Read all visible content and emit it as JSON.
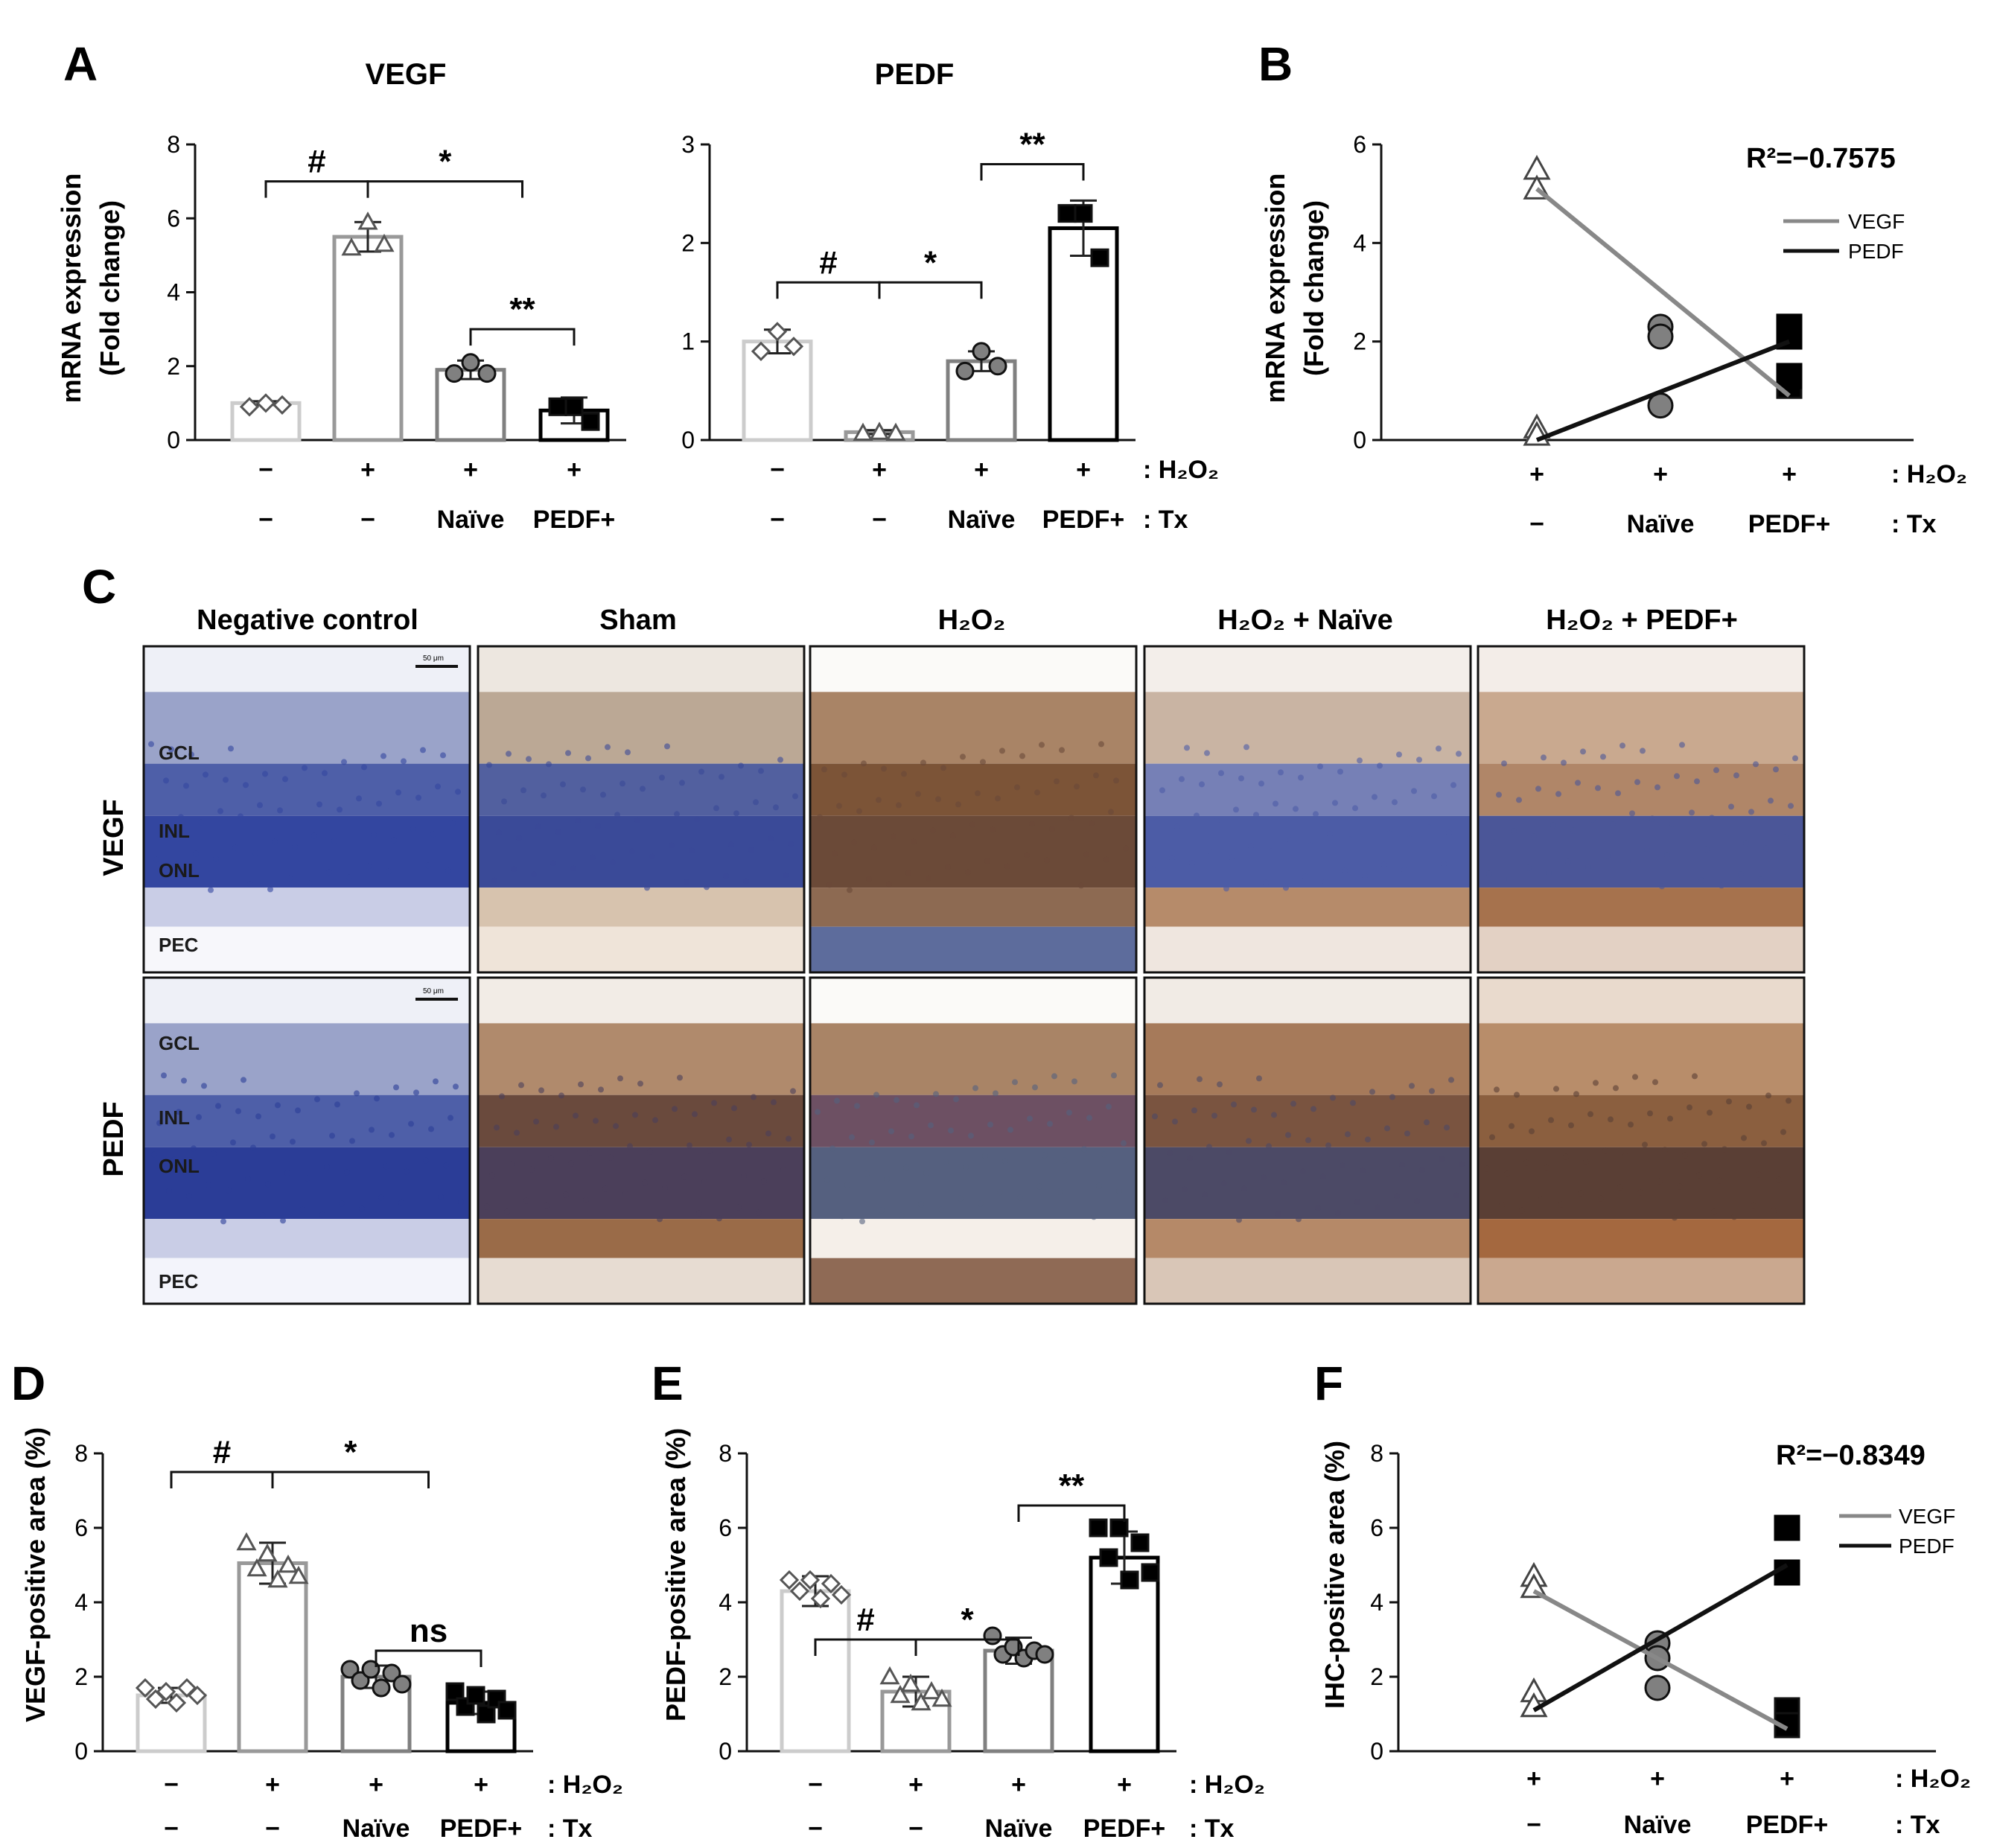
{
  "panel_letters": [
    "A",
    "B",
    "C",
    "D",
    "E",
    "F"
  ],
  "panel_A": {
    "vegf_title": "VEGF",
    "pedf_title": "PEDF",
    "ylabel_line1": "mRNA expression",
    "ylabel_line2": "(Fold change)"
  },
  "panel_B": {
    "ylabel_line1": "mRNA expression",
    "ylabel_line2": "(Fold change)",
    "r2": "R²=−0.7575",
    "legend": [
      "VEGF",
      "PEDF"
    ]
  },
  "panel_C": {
    "columns": [
      "Negative control",
      "Sham",
      "H₂O₂",
      "H₂O₂ + Naïve",
      "H₂O₂ + PEDF+"
    ],
    "rows": [
      "VEGF",
      "PEDF"
    ],
    "layers": [
      "GCL",
      "INL",
      "ONL",
      "PEC"
    ],
    "scale_bar": "50 μm"
  },
  "panel_D": {
    "ylabel": "VEGF-positive area (%)"
  },
  "panel_E": {
    "ylabel": "PEDF-positive area (%)"
  },
  "panel_F": {
    "ylabel": "IHC-positive area (%)",
    "r2": "R²=−0.8349",
    "legend": [
      "VEGF",
      "PEDF"
    ]
  },
  "conditions": {
    "h2o2_row": [
      "−",
      "+",
      "+",
      "+"
    ],
    "tx_row": [
      "−",
      "−",
      "Naïve",
      "PEDF+"
    ],
    "h2o2_label": ": H₂O₂",
    "tx_label": ": Tx",
    "corr_h2o2_row": [
      "+",
      "+",
      "+"
    ],
    "corr_tx_row": [
      "−",
      "Naïve",
      "PEDF+"
    ]
  },
  "colors": {
    "group1": "#cccccc",
    "group2": "#999999",
    "group3": "#808080",
    "group4": "#000000",
    "vegf_line": "#888888",
    "pedf_line": "#111111"
  },
  "chart_data": [
    {
      "id": "A-VEGF",
      "type": "bar",
      "title": "VEGF",
      "ylabel": "mRNA expression (Fold change)",
      "ylim": [
        0,
        8
      ],
      "yticks": [
        0,
        2,
        4,
        6,
        8
      ],
      "categories": [
        "−/−",
        "+/−",
        "+/Naïve",
        "+/PEDF+"
      ],
      "values": [
        1.0,
        5.5,
        1.9,
        0.8
      ],
      "errors": [
        0.05,
        0.4,
        0.25,
        0.35
      ],
      "points": [
        [
          0.9,
          1.0,
          0.95
        ],
        [
          5.2,
          5.9,
          5.3
        ],
        [
          1.8,
          2.1,
          1.8
        ],
        [
          0.9,
          0.9,
          0.5
        ]
      ],
      "markers": [
        "diamond",
        "triangle",
        "circle",
        "square"
      ],
      "significance": [
        {
          "from": 0,
          "to": 1,
          "label": "#",
          "y": 7.0
        },
        {
          "from": 1,
          "to": 2.5,
          "label": "*",
          "y": 7.0
        },
        {
          "from": 2,
          "to": 3,
          "label": "**",
          "y": 3.0
        }
      ]
    },
    {
      "id": "A-PEDF",
      "type": "bar",
      "title": "PEDF",
      "ylabel": "mRNA expression (Fold change)",
      "ylim": [
        0,
        3
      ],
      "yticks": [
        0,
        1,
        2,
        3
      ],
      "categories": [
        "−/−",
        "+/−",
        "+/Naïve",
        "+/PEDF+"
      ],
      "values": [
        1.0,
        0.08,
        0.8,
        2.15
      ],
      "errors": [
        0.12,
        0.02,
        0.1,
        0.28
      ],
      "points": [
        [
          0.9,
          1.1,
          0.95
        ],
        [
          0.07,
          0.08,
          0.07
        ],
        [
          0.7,
          0.9,
          0.75
        ],
        [
          2.3,
          2.3,
          1.85
        ]
      ],
      "markers": [
        "diamond",
        "triangle",
        "circle",
        "square"
      ],
      "significance": [
        {
          "from": 0,
          "to": 1,
          "label": "#",
          "y": 1.6
        },
        {
          "from": 1,
          "to": 2,
          "label": "*",
          "y": 1.6
        },
        {
          "from": 2,
          "to": 3,
          "label": "**",
          "y": 2.8
        }
      ]
    },
    {
      "id": "B",
      "type": "line",
      "ylabel": "mRNA expression (Fold change)",
      "ylim": [
        0,
        6
      ],
      "yticks": [
        0,
        2,
        4,
        6
      ],
      "categories": [
        "−",
        "Naïve",
        "PEDF+"
      ],
      "series": [
        {
          "name": "VEGF",
          "values": [
            5.1,
            null,
            0.9
          ],
          "points": [
            [
              0,
              5.5
            ],
            [
              0,
              5.1
            ],
            [
              0,
              0.25
            ],
            [
              0,
              0.1
            ],
            [
              1,
              2.3
            ],
            [
              1,
              2.1
            ],
            [
              1,
              0.7
            ],
            [
              2,
              1.3
            ],
            [
              2,
              1.1
            ]
          ]
        },
        {
          "name": "PEDF",
          "values": [
            0.0,
            null,
            2.0
          ],
          "points": [
            [
              2,
              2.3
            ],
            [
              2,
              2.1
            ],
            [
              2,
              1.3
            ]
          ]
        }
      ],
      "r2": "R²=−0.7575"
    },
    {
      "id": "D",
      "type": "bar",
      "ylabel": "VEGF-positive area (%)",
      "ylim": [
        0,
        8
      ],
      "yticks": [
        0,
        2,
        4,
        6,
        8
      ],
      "categories": [
        "−/−",
        "+/−",
        "+/Naïve",
        "+/PEDF+"
      ],
      "values": [
        1.5,
        5.05,
        2.0,
        1.3
      ],
      "errors": [
        0.2,
        0.55,
        0.3,
        0.3
      ],
      "points": [
        [
          1.7,
          1.4,
          1.6,
          1.3,
          1.7,
          1.5
        ],
        [
          5.6,
          4.9,
          5.3,
          4.6,
          5.0,
          4.7
        ],
        [
          2.2,
          1.9,
          2.2,
          1.7,
          2.1,
          1.8
        ],
        [
          1.6,
          1.2,
          1.5,
          1.0,
          1.4,
          1.1
        ]
      ],
      "markers": [
        "diamond",
        "triangle",
        "circle",
        "square"
      ],
      "significance": [
        {
          "from": 0,
          "to": 1,
          "label": "#",
          "y": 7.5
        },
        {
          "from": 1,
          "to": 2.5,
          "label": "*",
          "y": 7.5
        },
        {
          "from": 2,
          "to": 3,
          "label": "ns",
          "y": 2.7
        }
      ]
    },
    {
      "id": "E",
      "type": "bar",
      "ylabel": "PEDF-positive area (%)",
      "ylim": [
        0,
        8
      ],
      "yticks": [
        0,
        2,
        4,
        6,
        8
      ],
      "categories": [
        "−/−",
        "+/−",
        "+/Naïve",
        "+/PEDF+"
      ],
      "values": [
        4.3,
        1.6,
        2.7,
        5.2
      ],
      "errors": [
        0.4,
        0.4,
        0.35,
        0.7
      ],
      "points": [
        [
          4.6,
          4.3,
          4.6,
          4.1,
          4.5,
          4.2
        ],
        [
          2.0,
          1.5,
          1.8,
          1.3,
          1.6,
          1.4
        ],
        [
          3.1,
          2.6,
          2.8,
          2.5,
          2.7,
          2.6
        ],
        [
          6.0,
          5.2,
          6.0,
          4.6,
          5.6,
          4.8
        ]
      ],
      "markers": [
        "diamond",
        "triangle",
        "circle",
        "square"
      ],
      "significance": [
        {
          "from": 0,
          "to": 1,
          "label": "#",
          "y": 3.0
        },
        {
          "from": 1,
          "to": 2,
          "label": "*",
          "y": 3.0
        },
        {
          "from": 2,
          "to": 3,
          "label": "**",
          "y": 6.6
        }
      ]
    },
    {
      "id": "F",
      "type": "line",
      "ylabel": "IHC-positive area (%)",
      "ylim": [
        0,
        8
      ],
      "yticks": [
        0,
        2,
        4,
        6,
        8
      ],
      "categories": [
        "−",
        "Naïve",
        "PEDF+"
      ],
      "series": [
        {
          "name": "VEGF",
          "values": [
            4.3,
            null,
            0.6
          ],
          "points": [
            [
              0,
              4.7
            ],
            [
              0,
              4.4
            ],
            [
              0,
              1.6
            ],
            [
              0,
              1.2
            ],
            [
              1,
              2.9
            ],
            [
              1,
              2.5
            ],
            [
              1,
              1.7
            ],
            [
              2,
              1.1
            ],
            [
              2,
              0.7
            ]
          ]
        },
        {
          "name": "PEDF",
          "values": [
            1.1,
            null,
            5.0
          ],
          "points": [
            [
              2,
              6.0
            ],
            [
              2,
              4.8
            ]
          ]
        }
      ],
      "r2": "R²=−0.8349"
    }
  ]
}
